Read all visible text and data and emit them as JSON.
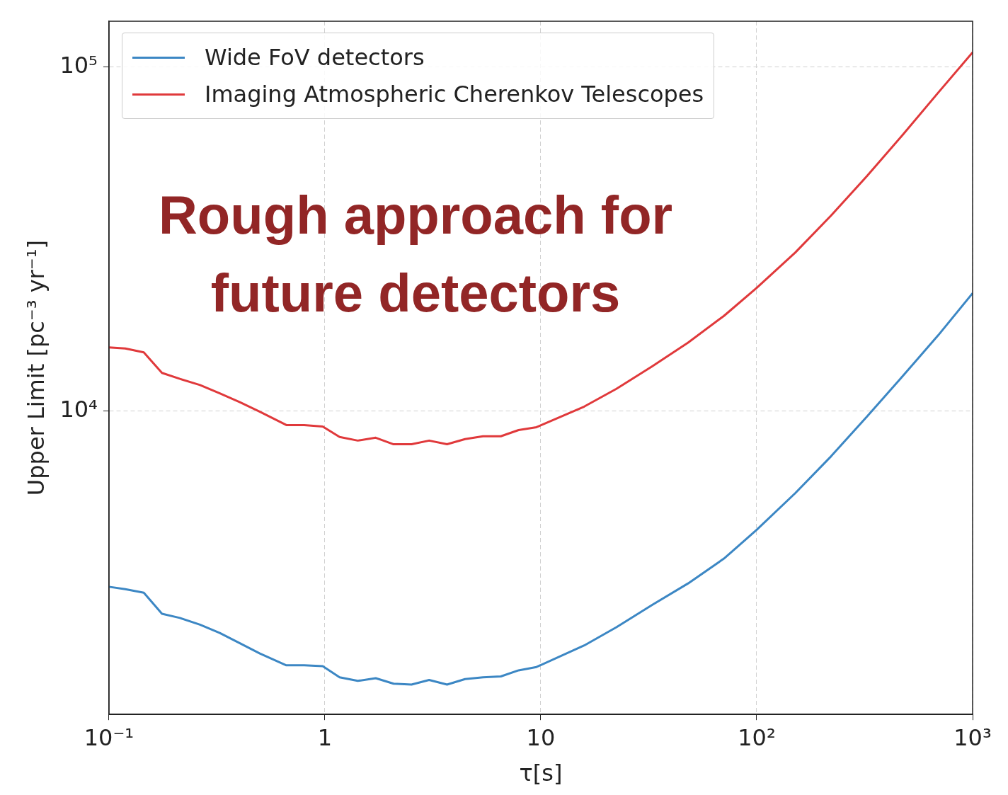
{
  "chart_data": {
    "type": "line",
    "xlabel": "τ[s]",
    "ylabel": "Upper Limit [pc⁻³ yr⁻¹]",
    "log": "xy",
    "grid": true,
    "legend": "top left",
    "marker": "none",
    "line_style": "solid",
    "xlim": [
      0.1,
      1000
    ],
    "ylim": [
      1310,
      136000
    ],
    "xticks": [
      {
        "value": 0.1,
        "label": "10⁻¹"
      },
      1,
      10,
      {
        "value": 100,
        "label": "10²"
      },
      {
        "value": 1000,
        "label": "10³"
      }
    ],
    "yticks": [
      {
        "value": 10000,
        "label": "10⁴"
      },
      {
        "value": 100000,
        "label": "10⁵"
      }
    ],
    "x": [
      0.1,
      0.119,
      0.145,
      0.176,
      0.213,
      0.264,
      0.326,
      0.404,
      0.5,
      0.663,
      0.802,
      0.977,
      1.17,
      1.42,
      1.72,
      2.08,
      2.52,
      3.04,
      3.68,
      4.46,
      5.4,
      6.53,
      7.89,
      9.55,
      15.9,
      22.4,
      32.9,
      48.1,
      70.5,
      100,
      151,
      221,
      324,
      473,
      693,
      1000
    ],
    "series": [
      {
        "name": "Wide FoV detectors",
        "color": "#3c87c4",
        "values": [
          3080,
          3030,
          2960,
          2570,
          2500,
          2390,
          2260,
          2110,
          1970,
          1820,
          1820,
          1810,
          1680,
          1640,
          1670,
          1610,
          1600,
          1650,
          1600,
          1660,
          1680,
          1690,
          1760,
          1800,
          2080,
          2350,
          2730,
          3150,
          3720,
          4510,
          5770,
          7380,
          9630,
          12600,
          16600,
          22000
        ]
      },
      {
        "name": "Imaging Atmospheric Cherenkov Telescopes",
        "color": "#e0393b",
        "values": [
          15300,
          15200,
          14800,
          12900,
          12400,
          11900,
          11250,
          10600,
          9950,
          9100,
          9100,
          9010,
          8400,
          8200,
          8360,
          8000,
          8000,
          8200,
          8000,
          8280,
          8440,
          8440,
          8800,
          8970,
          10300,
          11600,
          13500,
          15800,
          18900,
          22800,
          28900,
          37000,
          48200,
          63400,
          84300,
          110400
        ]
      }
    ],
    "annotations": [
      "Rough approach for future detectors"
    ]
  }
}
